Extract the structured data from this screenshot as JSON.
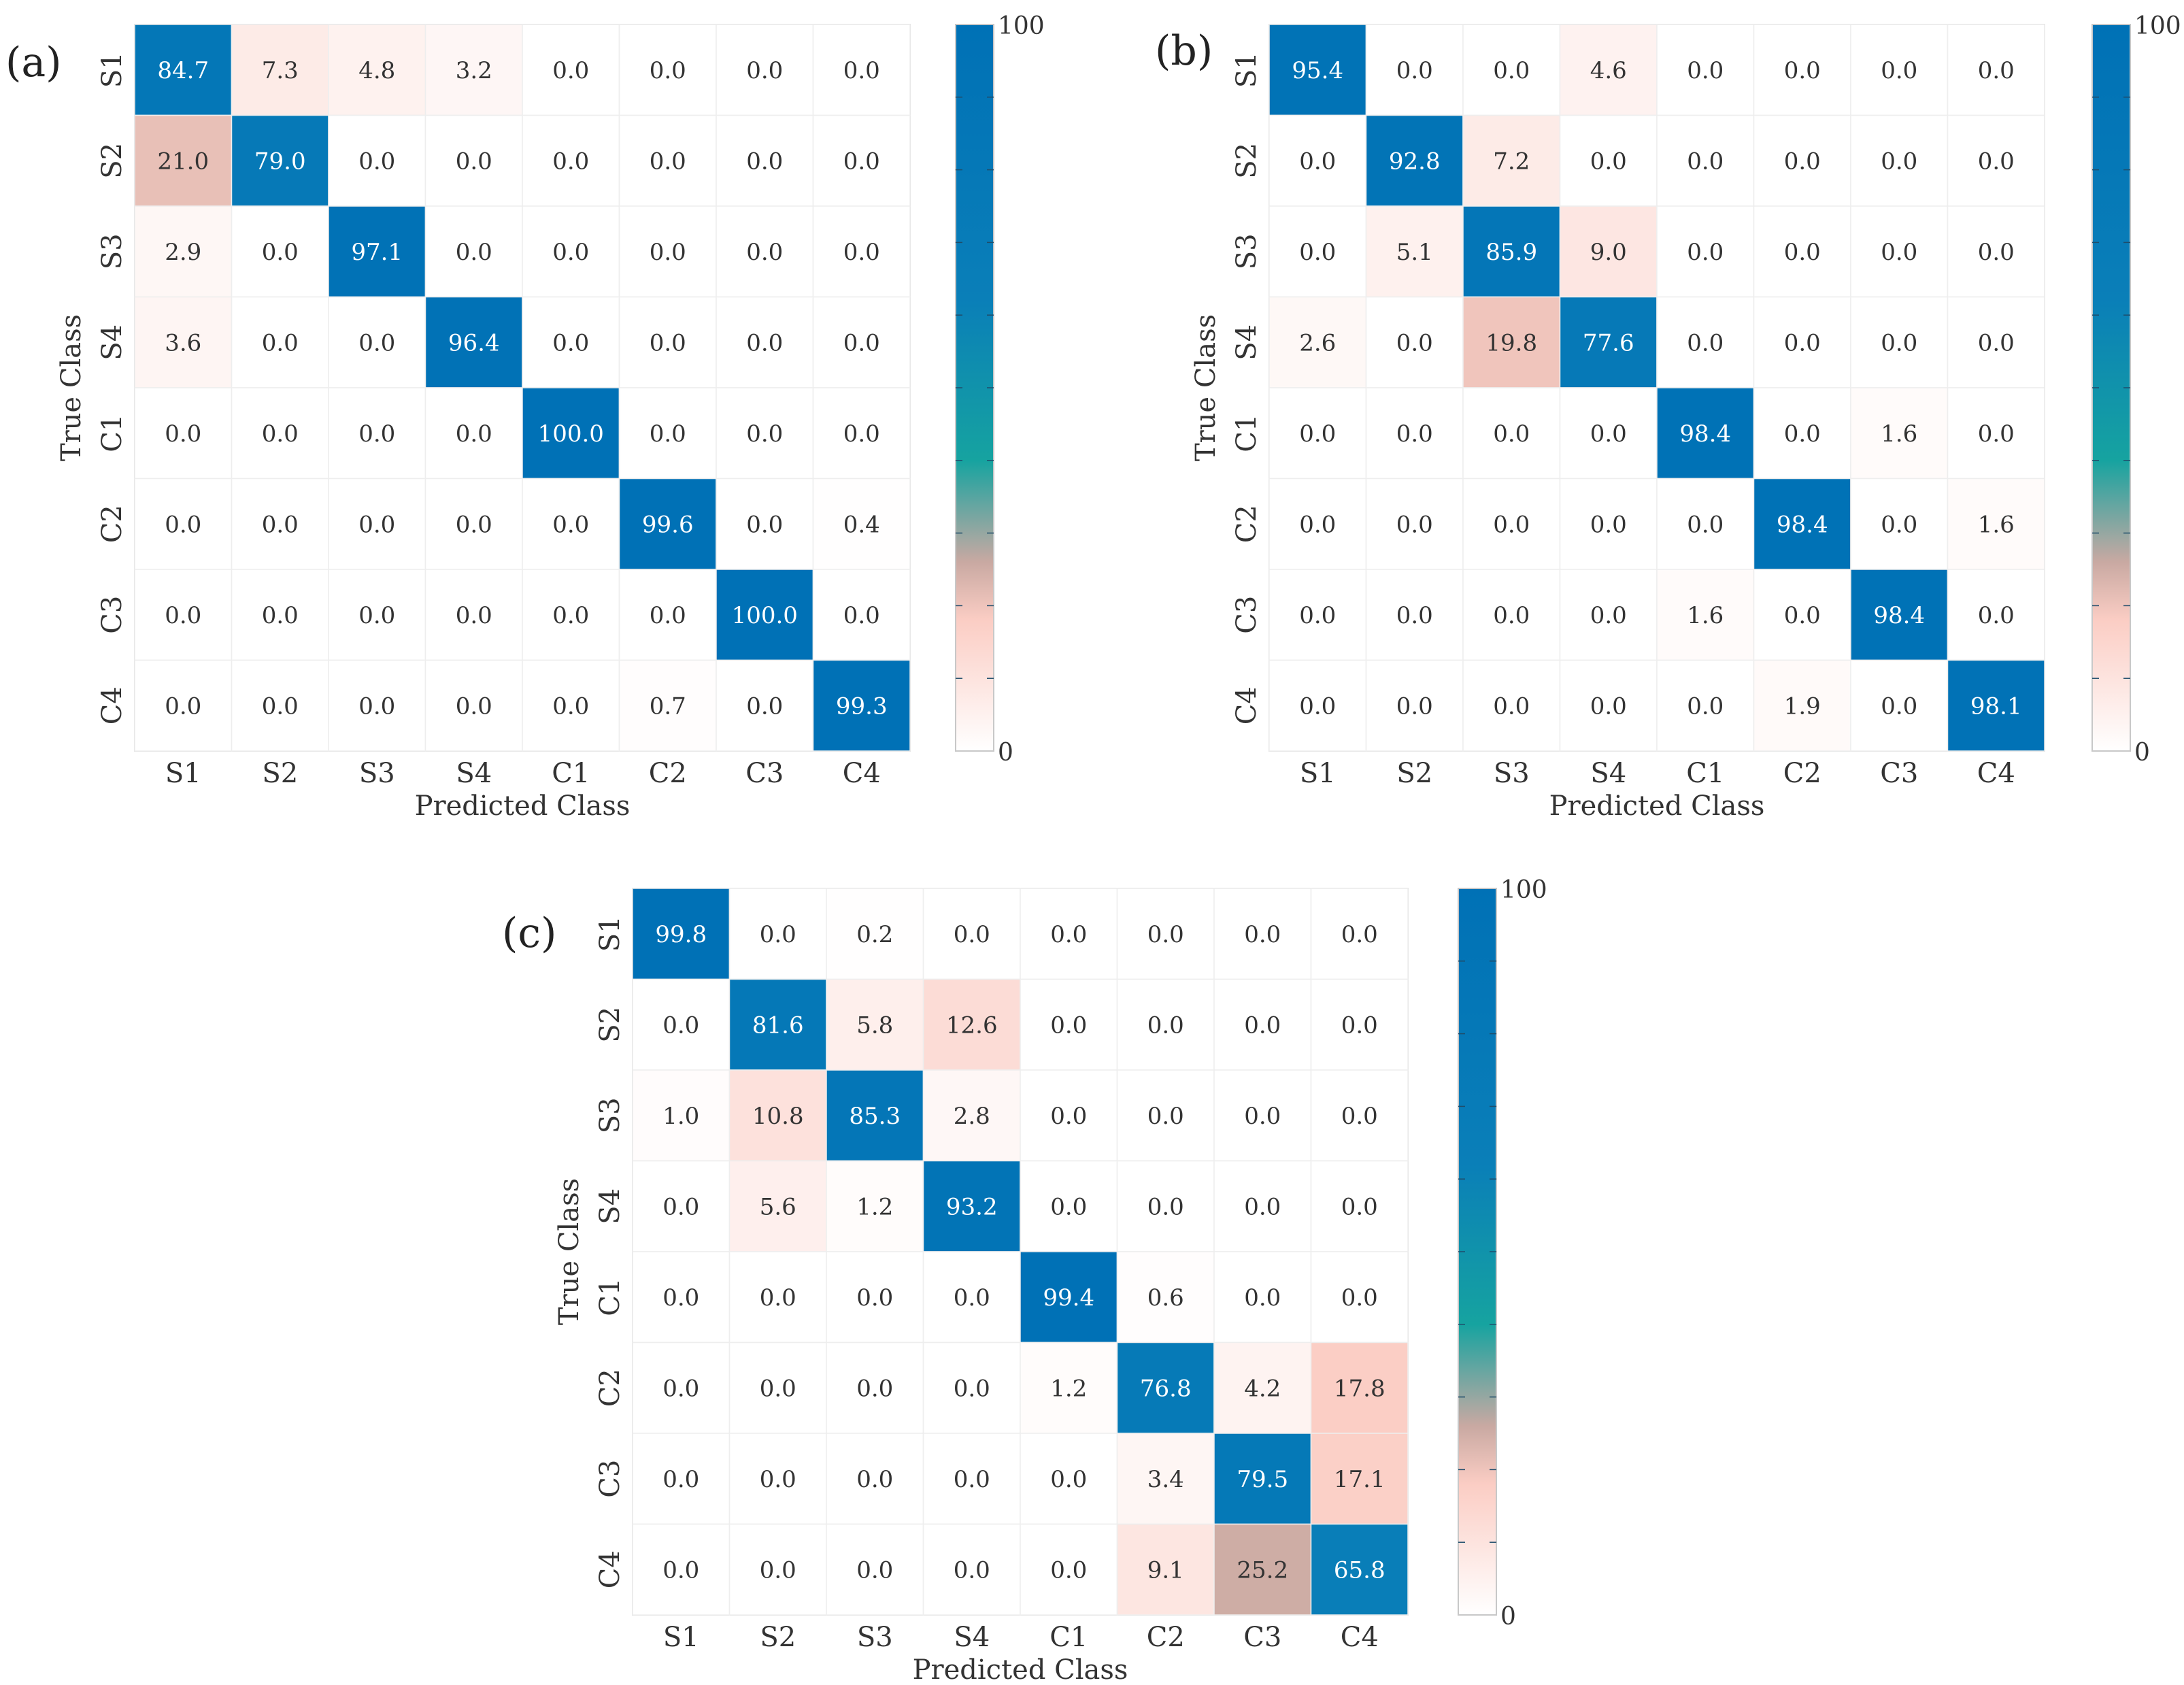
{
  "chart_data": [
    {
      "type": "heatmap",
      "panel_label": "(a)",
      "xlabel": "Predicted Class",
      "ylabel": "True Class",
      "x_categories": [
        "S1",
        "S2",
        "S3",
        "S4",
        "C1",
        "C2",
        "C3",
        "C4"
      ],
      "y_categories": [
        "S1",
        "S2",
        "S3",
        "S4",
        "C1",
        "C2",
        "C3",
        "C4"
      ],
      "values": [
        [
          84.7,
          7.3,
          4.8,
          3.2,
          0.0,
          0.0,
          0.0,
          0.0
        ],
        [
          21.0,
          79.0,
          0.0,
          0.0,
          0.0,
          0.0,
          0.0,
          0.0
        ],
        [
          2.9,
          0.0,
          97.1,
          0.0,
          0.0,
          0.0,
          0.0,
          0.0
        ],
        [
          3.6,
          0.0,
          0.0,
          96.4,
          0.0,
          0.0,
          0.0,
          0.0
        ],
        [
          0.0,
          0.0,
          0.0,
          0.0,
          100.0,
          0.0,
          0.0,
          0.0
        ],
        [
          0.0,
          0.0,
          0.0,
          0.0,
          0.0,
          99.6,
          0.0,
          0.4
        ],
        [
          0.0,
          0.0,
          0.0,
          0.0,
          0.0,
          0.0,
          100.0,
          0.0
        ],
        [
          0.0,
          0.0,
          0.0,
          0.0,
          0.0,
          0.7,
          0.0,
          99.3
        ]
      ],
      "colorbar": {
        "min": 0,
        "max": 100,
        "min_label": "0",
        "max_label": "100"
      }
    },
    {
      "type": "heatmap",
      "panel_label": "(b)",
      "xlabel": "Predicted Class",
      "ylabel": "True Class",
      "x_categories": [
        "S1",
        "S2",
        "S3",
        "S4",
        "C1",
        "C2",
        "C3",
        "C4"
      ],
      "y_categories": [
        "S1",
        "S2",
        "S3",
        "S4",
        "C1",
        "C2",
        "C3",
        "C4"
      ],
      "values": [
        [
          95.4,
          0.0,
          0.0,
          4.6,
          0.0,
          0.0,
          0.0,
          0.0
        ],
        [
          0.0,
          92.8,
          7.2,
          0.0,
          0.0,
          0.0,
          0.0,
          0.0
        ],
        [
          0.0,
          5.1,
          85.9,
          9.0,
          0.0,
          0.0,
          0.0,
          0.0
        ],
        [
          2.6,
          0.0,
          19.8,
          77.6,
          0.0,
          0.0,
          0.0,
          0.0
        ],
        [
          0.0,
          0.0,
          0.0,
          0.0,
          98.4,
          0.0,
          1.6,
          0.0
        ],
        [
          0.0,
          0.0,
          0.0,
          0.0,
          0.0,
          98.4,
          0.0,
          1.6
        ],
        [
          0.0,
          0.0,
          0.0,
          0.0,
          1.6,
          0.0,
          98.4,
          0.0
        ],
        [
          0.0,
          0.0,
          0.0,
          0.0,
          0.0,
          1.9,
          0.0,
          98.1
        ]
      ],
      "colorbar": {
        "min": 0,
        "max": 100,
        "min_label": "0",
        "max_label": "100"
      }
    },
    {
      "type": "heatmap",
      "panel_label": "(c)",
      "xlabel": "Predicted Class",
      "ylabel": "True Class",
      "x_categories": [
        "S1",
        "S2",
        "S3",
        "S4",
        "C1",
        "C2",
        "C3",
        "C4"
      ],
      "y_categories": [
        "S1",
        "S2",
        "S3",
        "S4",
        "C1",
        "C2",
        "C3",
        "C4"
      ],
      "values": [
        [
          99.8,
          0.0,
          0.2,
          0.0,
          0.0,
          0.0,
          0.0,
          0.0
        ],
        [
          0.0,
          81.6,
          5.8,
          12.6,
          0.0,
          0.0,
          0.0,
          0.0
        ],
        [
          1.0,
          10.8,
          85.3,
          2.8,
          0.0,
          0.0,
          0.0,
          0.0
        ],
        [
          0.0,
          5.6,
          1.2,
          93.2,
          0.0,
          0.0,
          0.0,
          0.0
        ],
        [
          0.0,
          0.0,
          0.0,
          0.0,
          99.4,
          0.6,
          0.0,
          0.0
        ],
        [
          0.0,
          0.0,
          0.0,
          0.0,
          1.2,
          76.8,
          4.2,
          17.8
        ],
        [
          0.0,
          0.0,
          0.0,
          0.0,
          0.0,
          3.4,
          79.5,
          17.1
        ],
        [
          0.0,
          0.0,
          0.0,
          0.0,
          0.0,
          9.1,
          25.2,
          65.8
        ]
      ],
      "colorbar": {
        "min": 0,
        "max": 100,
        "min_label": "0",
        "max_label": "100"
      }
    }
  ],
  "colormap": {
    "stops": [
      {
        "value": 0,
        "color": "#ffffff"
      },
      {
        "value": 18,
        "color": "#fbcdc4"
      },
      {
        "value": 26,
        "color": "#c9a9a2"
      },
      {
        "value": 40,
        "color": "#16a3a0"
      },
      {
        "value": 62,
        "color": "#0a7fb8"
      },
      {
        "value": 100,
        "color": "#0071b6"
      }
    ],
    "light_text": "#ffffff",
    "dark_text": "#333333"
  }
}
